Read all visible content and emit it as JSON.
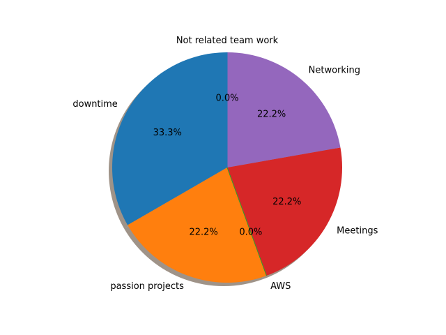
{
  "chart_data": {
    "type": "pie",
    "title": "",
    "labels": [
      "Not related team work",
      "downtime",
      "passion projects",
      "AWS",
      "Meetings",
      "Networking"
    ],
    "values": [
      0,
      3,
      2,
      0,
      2,
      2
    ],
    "percent_labels": [
      "0.0%",
      "33.3%",
      "22.2%",
      "0.0%",
      "22.2%",
      "22.2%"
    ],
    "colors": [
      "#1f77b4",
      "#1f77b4",
      "#ff7f0e",
      "#2ca02c",
      "#d62728",
      "#9467bd"
    ],
    "start_angle_deg": 90,
    "direction": "counterclockwise",
    "shadow": true,
    "legend": "none"
  }
}
